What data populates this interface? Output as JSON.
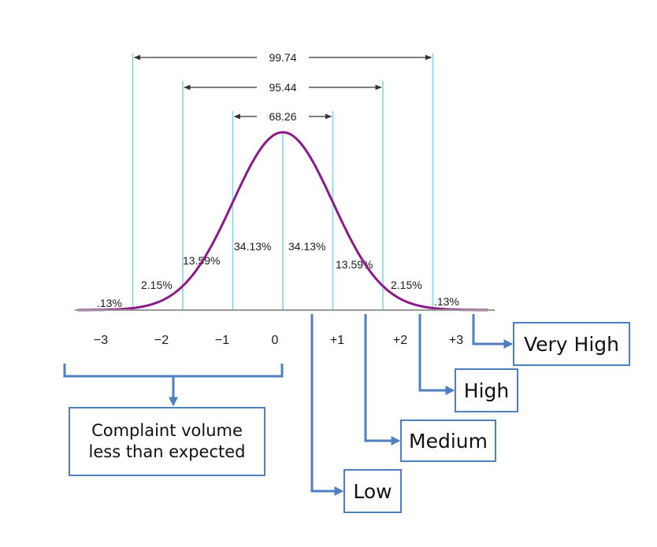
{
  "chart_data": {
    "type": "line",
    "distribution": "normal",
    "x_ticks": [
      "−3",
      "−2",
      "−1",
      "0",
      "+1",
      "+2",
      "+3"
    ],
    "x_values": [
      -3,
      -2,
      -1,
      0,
      1,
      2,
      3
    ],
    "segments": [
      {
        "from": -3.6,
        "to": -3,
        "label": ".13%",
        "value": 0.13
      },
      {
        "from": -3,
        "to": -2,
        "label": "2.15%",
        "value": 2.15
      },
      {
        "from": -2,
        "to": -1,
        "label": "13.59%",
        "value": 13.59
      },
      {
        "from": -1,
        "to": 0,
        "label": "34.13%",
        "value": 34.13
      },
      {
        "from": 0,
        "to": 1,
        "label": "34.13%",
        "value": 34.13
      },
      {
        "from": 1,
        "to": 2,
        "label": "13.59%",
        "value": 13.59
      },
      {
        "from": 2,
        "to": 3,
        "label": "2.15%",
        "value": 2.15
      },
      {
        "from": 3,
        "to": 3.6,
        "label": ".13%",
        "value": 0.13
      }
    ],
    "ranges": [
      {
        "from": -1,
        "to": 1,
        "label": "68.26",
        "value": 68.26
      },
      {
        "from": -2,
        "to": 2,
        "label": "95.44",
        "value": 95.44
      },
      {
        "from": -3,
        "to": 3,
        "label": "99.74",
        "value": 99.74
      }
    ],
    "colors": {
      "curve": "#8b1a89",
      "sigma_lines": "#7fd3e6",
      "axis": "#999999",
      "arrows": "#4f7fbf"
    }
  },
  "annotations": {
    "bracket_label_line1": "Complaint volume",
    "bracket_label_line2": "less than expected",
    "categories": [
      "Low",
      "Medium",
      "High",
      "Very High"
    ]
  }
}
